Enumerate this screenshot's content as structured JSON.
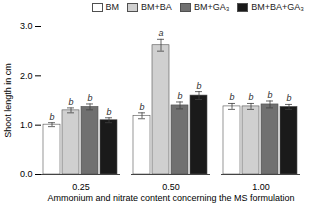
{
  "chart_data": {
    "type": "bar",
    "categories": [
      "0.25",
      "0.50",
      "1.00"
    ],
    "series": [
      {
        "name": "BM",
        "color": "#ffffff",
        "values": [
          1.01,
          1.19,
          1.38
        ],
        "errors": [
          0.04,
          0.06,
          0.06
        ],
        "letters": [
          "b",
          "b",
          "b"
        ]
      },
      {
        "name": "BM+BA",
        "color": "#d0d0d0",
        "values": [
          1.3,
          2.62,
          1.38
        ],
        "errors": [
          0.05,
          0.12,
          0.06
        ],
        "letters": [
          "b",
          "a",
          "b"
        ]
      },
      {
        "name": "BM+GA₃",
        "color": "#707070",
        "values": [
          1.37,
          1.4,
          1.42
        ],
        "errors": [
          0.06,
          0.07,
          0.07
        ],
        "letters": [
          "b",
          "b",
          "b"
        ]
      },
      {
        "name": "BM+BA+GA₃",
        "color": "#1a1a1a",
        "values": [
          1.1,
          1.6,
          1.37
        ],
        "errors": [
          0.05,
          0.08,
          0.05
        ],
        "letters": [
          "b",
          "b",
          "b"
        ]
      }
    ],
    "xlabel": "Ammonium and nitrate content concerning the MS formulation",
    "ylabel": "Shoot length in cm",
    "ylim": [
      0,
      3.0
    ],
    "yticks": [
      0,
      1,
      2,
      3
    ],
    "legend": "upper right"
  }
}
